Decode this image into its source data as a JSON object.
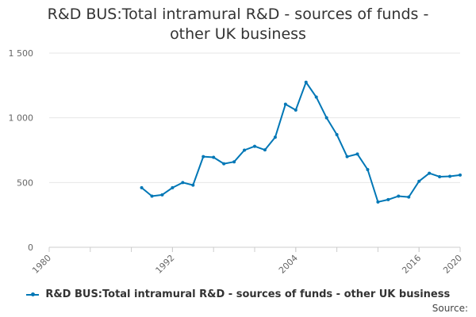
{
  "chart_data": {
    "type": "line",
    "title": "R&D BUS:Total intramural R&D - sources of funds - other UK business",
    "xlim": [
      1980,
      2020
    ],
    "ylim": [
      0,
      1500
    ],
    "xticks": [
      "1980",
      "1992",
      "2004",
      "2016",
      "2020"
    ],
    "yticks": [
      "0",
      "500",
      "1 000",
      "1 500"
    ],
    "grid": true,
    "legend_position": "bottom",
    "series": [
      {
        "name": "R&D BUS:Total intramural R&D - sources of funds - other UK business",
        "color": "#0077b6",
        "x": [
          1989,
          1990,
          1991,
          1992,
          1993,
          1994,
          1995,
          1996,
          1997,
          1998,
          1999,
          2000,
          2001,
          2002,
          2003,
          2004,
          2005,
          2006,
          2007,
          2008,
          2009,
          2010,
          2011,
          2012,
          2013,
          2014,
          2015,
          2016,
          2017,
          2018,
          2019,
          2020
        ],
        "values": [
          460,
          395,
          405,
          460,
          500,
          480,
          700,
          695,
          645,
          660,
          750,
          780,
          752,
          850,
          1105,
          1060,
          1275,
          1160,
          1000,
          870,
          700,
          720,
          600,
          350,
          368,
          395,
          388,
          510,
          572,
          545,
          548,
          558
        ]
      }
    ]
  },
  "source_label": "Source:"
}
